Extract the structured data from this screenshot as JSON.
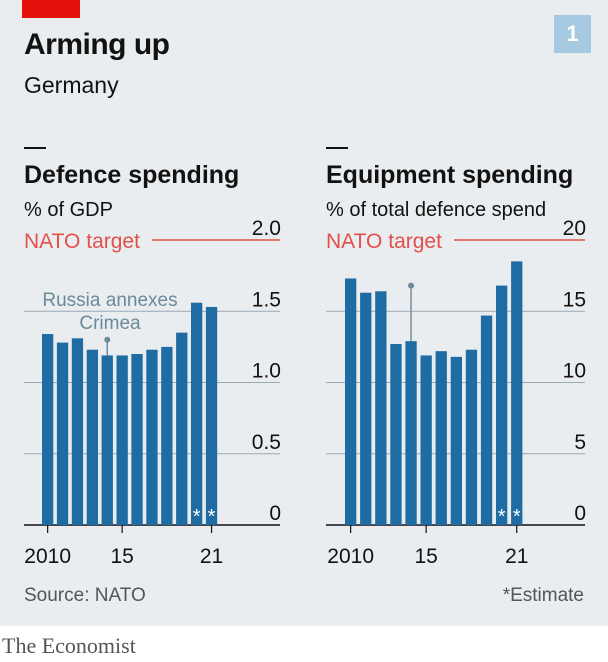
{
  "header": {
    "title": "Arming up",
    "subtitle": "Germany",
    "chart_number": "1"
  },
  "footer": {
    "source": "Source: NATO",
    "note": "*Estimate",
    "brand": "The Economist"
  },
  "colors": {
    "bar": "#1f6ba3",
    "target": "#e3504a",
    "annotation": "#6b8a9a",
    "grid": "#99aab5",
    "background": "#e9edf0"
  },
  "chart_data": [
    {
      "type": "bar",
      "title": "Defence spending",
      "subtitle": "% of GDP",
      "x": [
        2010,
        2011,
        2012,
        2013,
        2014,
        2015,
        2016,
        2017,
        2018,
        2019,
        2020,
        2021
      ],
      "values": [
        1.34,
        1.28,
        1.31,
        1.23,
        1.19,
        1.19,
        1.2,
        1.23,
        1.25,
        1.35,
        1.56,
        1.53
      ],
      "estimate_marks": [
        "*",
        "*"
      ],
      "estimated_years": [
        2020,
        2021
      ],
      "x_tick_labels": [
        "2010",
        "15",
        "21"
      ],
      "x_tick_values": [
        2010,
        2015,
        2021
      ],
      "y_ticks": [
        0,
        0.5,
        1.0,
        1.5,
        2.0
      ],
      "y_tick_labels": [
        "0",
        "0.5",
        "1.0",
        "1.5",
        "2.0"
      ],
      "ylim": [
        0,
        2.0
      ],
      "target": {
        "label": "NATO target",
        "value": 2.0
      },
      "annotation": {
        "lines": [
          "Russia annexes",
          "Crimea"
        ],
        "year": 2014,
        "value": 1.3
      }
    },
    {
      "type": "bar",
      "title": "Equipment spending",
      "subtitle": "% of total defence spend",
      "x": [
        2010,
        2011,
        2012,
        2013,
        2014,
        2015,
        2016,
        2017,
        2018,
        2019,
        2020,
        2021
      ],
      "values": [
        17.3,
        16.3,
        16.4,
        12.7,
        12.9,
        11.9,
        12.2,
        11.8,
        12.3,
        14.7,
        16.8,
        18.5
      ],
      "estimate_marks": [
        "*",
        "*"
      ],
      "estimated_years": [
        2020,
        2021
      ],
      "x_tick_labels": [
        "2010",
        "15",
        "21"
      ],
      "x_tick_values": [
        2010,
        2015,
        2021
      ],
      "y_ticks": [
        0,
        5,
        10,
        15,
        20
      ],
      "y_tick_labels": [
        "0",
        "5",
        "10",
        "15",
        "20"
      ],
      "ylim": [
        0,
        20
      ],
      "target": {
        "label": "NATO target",
        "value": 20
      },
      "annotation": {
        "lines": [],
        "year": 2014,
        "value": 16.8
      }
    }
  ]
}
